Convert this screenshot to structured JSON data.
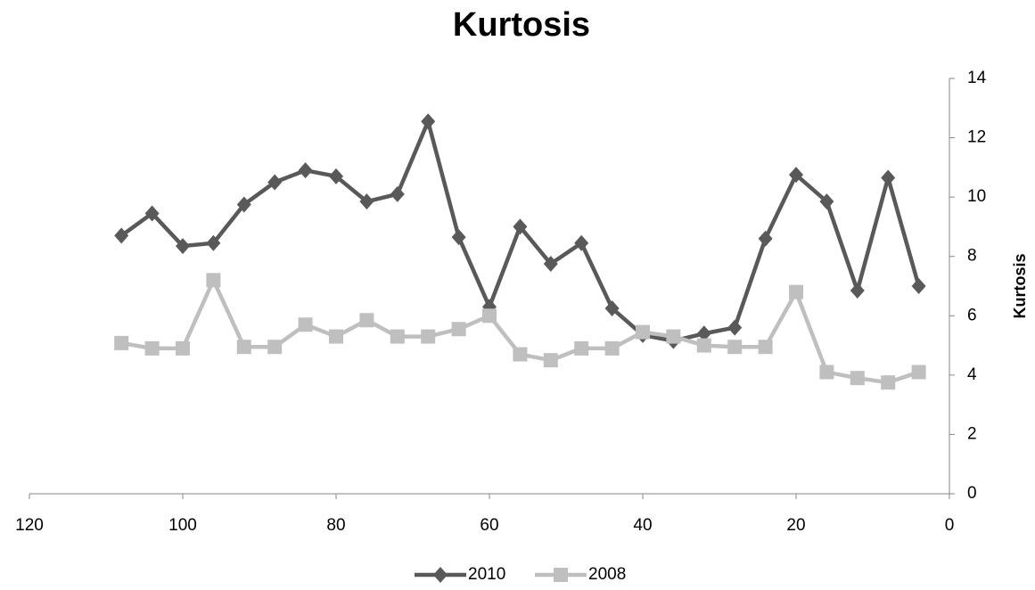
{
  "chart_data": {
    "type": "line",
    "title": "Kurtosis",
    "y_label": "Kurtosis",
    "y_axis_position": "right",
    "legend": "bottom",
    "x": [
      108,
      104,
      100,
      96,
      92,
      88,
      84,
      80,
      76,
      72,
      68,
      64,
      60,
      56,
      52,
      48,
      44,
      40,
      36,
      32,
      28,
      24,
      20,
      16,
      12,
      8,
      4
    ],
    "series": [
      {
        "name": "2010",
        "color": "#595959",
        "marker": "diamond",
        "values": [
          8.7,
          9.45,
          8.35,
          8.45,
          9.75,
          10.5,
          10.9,
          10.7,
          9.85,
          10.1,
          12.55,
          8.65,
          6.3,
          9.0,
          7.75,
          8.45,
          6.25,
          5.35,
          5.15,
          5.4,
          5.6,
          8.6,
          10.75,
          9.85,
          6.85,
          10.65,
          7.0
        ]
      },
      {
        "name": "2008",
        "color": "#bfbfbf",
        "marker": "square",
        "values": [
          5.08,
          4.9,
          4.9,
          7.2,
          4.95,
          4.95,
          5.7,
          5.3,
          5.85,
          5.3,
          5.3,
          5.55,
          6.0,
          4.7,
          4.5,
          4.9,
          4.9,
          5.45,
          5.3,
          5.0,
          4.95,
          4.95,
          6.8,
          4.1,
          3.9,
          3.75,
          4.1
        ]
      }
    ],
    "xlim": [
      120,
      0
    ],
    "xticks": [
      120,
      100,
      80,
      60,
      40,
      20,
      0
    ],
    "ylim": [
      0,
      14
    ],
    "yticks": [
      0,
      2,
      4,
      6,
      8,
      10,
      12,
      14
    ],
    "grid": false
  }
}
